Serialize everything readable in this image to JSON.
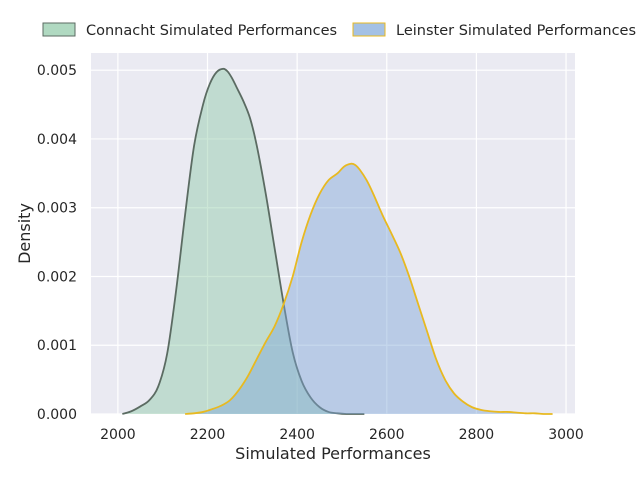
{
  "chart_data": {
    "type": "area",
    "title": "",
    "xlabel": "Simulated Performances",
    "ylabel": "Density",
    "xlim": [
      1940,
      3020
    ],
    "ylim": [
      0,
      0.00525
    ],
    "xticks": [
      2000,
      2200,
      2400,
      2600,
      2800,
      3000
    ],
    "xtick_labels": [
      "2000",
      "2200",
      "2400",
      "2600",
      "2800",
      "3000"
    ],
    "yticks": [
      0,
      0.001,
      0.002,
      0.003,
      0.004,
      0.005
    ],
    "ytick_labels": [
      "0.000",
      "0.001",
      "0.002",
      "0.003",
      "0.004",
      "0.005"
    ],
    "grid": true,
    "legend_placement": "top-center",
    "series": [
      {
        "name": "Connacht Simulated Performances",
        "fill": "#8ec9a6",
        "line": "#5b6b62",
        "x": [
          2010,
          2030,
          2050,
          2070,
          2090,
          2110,
          2130,
          2150,
          2170,
          2190,
          2205,
          2220,
          2235,
          2245,
          2255,
          2265,
          2280,
          2295,
          2310,
          2330,
          2350,
          2370,
          2390,
          2410,
          2430,
          2450,
          2470,
          2490,
          2510,
          2530,
          2550
        ],
        "values": [
          0.0,
          4e-05,
          0.00011,
          0.0002,
          0.0004,
          0.00088,
          0.0018,
          0.0029,
          0.0039,
          0.0045,
          0.0048,
          0.00497,
          0.00502,
          0.00498,
          0.00488,
          0.00475,
          0.00455,
          0.0043,
          0.0039,
          0.0032,
          0.0024,
          0.0016,
          0.0009,
          0.00048,
          0.00024,
          0.0001,
          3e-05,
          1e-05,
          0.0,
          0.0,
          0.0
        ]
      },
      {
        "name": "Leinster Simulated Performances",
        "fill": "#7ea6d8",
        "line": "#e8b920",
        "x": [
          2150,
          2170,
          2190,
          2210,
          2230,
          2250,
          2270,
          2290,
          2310,
          2330,
          2350,
          2370,
          2390,
          2410,
          2430,
          2450,
          2470,
          2490,
          2505,
          2520,
          2530,
          2540,
          2555,
          2570,
          2590,
          2610,
          2630,
          2650,
          2670,
          2690,
          2710,
          2730,
          2750,
          2770,
          2790,
          2810,
          2830,
          2850,
          2870,
          2890,
          2910,
          2930,
          2950,
          2970
        ],
        "values": [
          0.0,
          1e-05,
          3e-05,
          7e-05,
          0.00012,
          0.0002,
          0.00035,
          0.00055,
          0.0008,
          0.00105,
          0.00128,
          0.0016,
          0.002,
          0.0025,
          0.0029,
          0.0032,
          0.0034,
          0.0035,
          0.0036,
          0.00364,
          0.00362,
          0.00355,
          0.0034,
          0.0032,
          0.0029,
          0.00263,
          0.00235,
          0.002,
          0.0016,
          0.0012,
          0.0008,
          0.0005,
          0.0003,
          0.00018,
          0.0001,
          6e-05,
          4e-05,
          3e-05,
          3e-05,
          2e-05,
          1e-05,
          1e-05,
          0.0,
          0.0
        ]
      }
    ]
  }
}
